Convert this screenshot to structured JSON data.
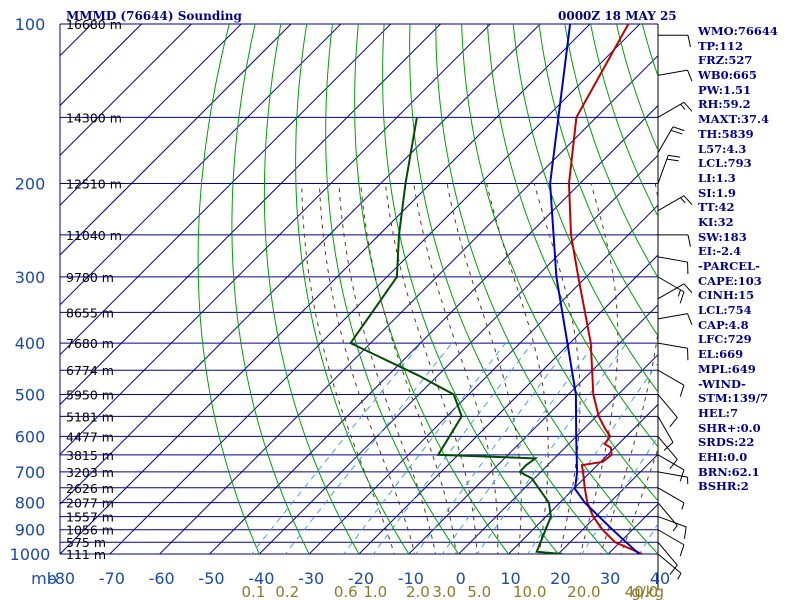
{
  "header": {
    "station": "MMMD (76644) Sounding",
    "time": "0000Z 18 MAY 25"
  },
  "indices": [
    "WMO:76644",
    "TP:112",
    "FRZ:527",
    "WB0:665",
    "PW:1.51",
    "RH:59.2",
    "MAXT:37.4",
    "TH:5839",
    "L57:4.3",
    "LCL:793",
    "LI:1.3",
    "SI:1.9",
    "TT:42",
    "KI:32",
    "SW:183",
    "EI:-2.4",
    "-PARCEL-",
    "CAPE:103",
    "CINH:15",
    "LCL:754",
    "CAP:4.8",
    "LFC:729",
    "EL:669",
    "MPL:649",
    "-WIND-",
    "STM:139/7",
    "HEL:7",
    "SHR+:0.0",
    "SRDS:22",
    "EHI:0.0",
    "BRN:62.1",
    "BSHR:2"
  ],
  "colors": {
    "isobar": "#00008b",
    "isotherm": "#00008b",
    "dry_adiabat": "#00a000",
    "moist_adiabat": "#5a3a1a",
    "mixing_ratio": "#4aa0e0",
    "temperature": "#c00000",
    "dewpoint": "#004d00",
    "parcel": "#0000c0",
    "wind": "#000000",
    "axis_text": "#1a4aa8",
    "mixing_text": "#8b7a2a"
  },
  "chart_data": {
    "type": "skew-t",
    "pressure_unit": "mb",
    "temperature_unit": "C",
    "mixing_ratio_unit": "g/kg",
    "pressure_ticks": [
      100,
      200,
      300,
      400,
      500,
      600,
      700,
      800,
      900,
      1000
    ],
    "temperature_ticks": [
      -80,
      -70,
      -60,
      -50,
      -40,
      -30,
      -20,
      -10,
      0,
      10,
      20,
      30,
      40
    ],
    "plim": [
      100,
      1000
    ],
    "tlim": [
      -80,
      40
    ],
    "height_labels": [
      {
        "p": 100,
        "label": "16680 m"
      },
      {
        "p": 150,
        "label": "14300 m"
      },
      {
        "p": 200,
        "label": "12510 m"
      },
      {
        "p": 250,
        "label": "11040 m"
      },
      {
        "p": 300,
        "label": "9780 m"
      },
      {
        "p": 350,
        "label": "8655 m"
      },
      {
        "p": 400,
        "label": "7680 m"
      },
      {
        "p": 450,
        "label": "6774 m"
      },
      {
        "p": 500,
        "label": "5950 m"
      },
      {
        "p": 550,
        "label": "5181 m"
      },
      {
        "p": 600,
        "label": "4477 m"
      },
      {
        "p": 650,
        "label": "3815 m"
      },
      {
        "p": 700,
        "label": "3203 m"
      },
      {
        "p": 750,
        "label": "2626 m"
      },
      {
        "p": 800,
        "label": "2077 m"
      },
      {
        "p": 850,
        "label": "1557 m"
      },
      {
        "p": 900,
        "label": "1056 m"
      },
      {
        "p": 950,
        "label": "575 m"
      },
      {
        "p": 1000,
        "label": "111 m"
      }
    ],
    "mixing_ratio_labels": [
      {
        "w": 0.1,
        "label": "0.1"
      },
      {
        "w": 0.2,
        "label": "0.2"
      },
      {
        "w": 0.6,
        "label": "0.6"
      },
      {
        "w": 1.0,
        "label": "1.0"
      },
      {
        "w": 2.0,
        "label": "2.0"
      },
      {
        "w": 3.0,
        "label": "3.0"
      },
      {
        "w": 5.0,
        "label": "5.0"
      },
      {
        "w": 10.0,
        "label": "10.0"
      },
      {
        "w": 20.0,
        "label": "20.0"
      },
      {
        "w": 40.0,
        "label": "40.0"
      }
    ],
    "mixing_ratio_unit_label": "g/kg",
    "axis_unit_label": "mb",
    "temperature": [
      {
        "p": 1000,
        "t": 36.8
      },
      {
        "p": 950,
        "t": 29.0
      },
      {
        "p": 900,
        "t": 24.0
      },
      {
        "p": 850,
        "t": 19.5
      },
      {
        "p": 800,
        "t": 15.5
      },
      {
        "p": 750,
        "t": 12.0
      },
      {
        "p": 700,
        "t": 8.5
      },
      {
        "p": 680,
        "t": 6.9
      },
      {
        "p": 670,
        "t": 10.4
      },
      {
        "p": 650,
        "t": 10.8
      },
      {
        "p": 630,
        "t": 9.2
      },
      {
        "p": 620,
        "t": 7.2
      },
      {
        "p": 600,
        "t": 6.8
      },
      {
        "p": 580,
        "t": 4.2
      },
      {
        "p": 550,
        "t": 0.5
      },
      {
        "p": 500,
        "t": -5.0
      },
      {
        "p": 400,
        "t": -15.8
      },
      {
        "p": 300,
        "t": -31.6
      },
      {
        "p": 250,
        "t": -41.5
      },
      {
        "p": 200,
        "t": -52.2
      },
      {
        "p": 150,
        "t": -64.0
      },
      {
        "p": 100,
        "t": -72.3
      }
    ],
    "dewpoint": [
      {
        "p": 1000,
        "t": 20.8
      },
      {
        "p": 990,
        "t": 15.2
      },
      {
        "p": 850,
        "t": 11.0
      },
      {
        "p": 800,
        "t": 7.8
      },
      {
        "p": 720,
        "t": -0.5
      },
      {
        "p": 700,
        "t": -4.2
      },
      {
        "p": 680,
        "t": -4.3
      },
      {
        "p": 660,
        "t": -3.8
      },
      {
        "p": 650,
        "t": -24.0
      },
      {
        "p": 550,
        "t": -27.0
      },
      {
        "p": 500,
        "t": -33.0
      },
      {
        "p": 460,
        "t": -44.0
      },
      {
        "p": 400,
        "t": -64.0
      },
      {
        "p": 300,
        "t": -68.0
      },
      {
        "p": 250,
        "t": -76.0
      },
      {
        "p": 200,
        "t": -85.0
      },
      {
        "p": 150,
        "t": -96.0
      }
    ],
    "parcel": [
      {
        "p": 1000,
        "t": 36.2
      },
      {
        "p": 900,
        "t": 26.0
      },
      {
        "p": 800,
        "t": 15.0
      },
      {
        "p": 754,
        "t": 10.3
      },
      {
        "p": 700,
        "t": 7.3
      },
      {
        "p": 600,
        "t": 0.0
      },
      {
        "p": 500,
        "t": -8.5
      },
      {
        "p": 400,
        "t": -20.5
      },
      {
        "p": 300,
        "t": -36.0
      },
      {
        "p": 200,
        "t": -56.0
      },
      {
        "p": 100,
        "t": -84.0
      }
    ],
    "wind_barbs": [
      {
        "p": 105,
        "dir": 90,
        "spd": 10
      },
      {
        "p": 125,
        "dir": 80,
        "spd": 10
      },
      {
        "p": 150,
        "dir": 60,
        "spd": 15
      },
      {
        "p": 175,
        "dir": 30,
        "spd": 20
      },
      {
        "p": 200,
        "dir": 20,
        "spd": 20
      },
      {
        "p": 225,
        "dir": 60,
        "spd": 15
      },
      {
        "p": 250,
        "dir": 90,
        "spd": 10
      },
      {
        "p": 275,
        "dir": 100,
        "spd": 10
      },
      {
        "p": 300,
        "dir": 120,
        "spd": 15
      },
      {
        "p": 330,
        "dir": 60,
        "spd": 10
      },
      {
        "p": 360,
        "dir": 80,
        "spd": 10
      },
      {
        "p": 400,
        "dir": 100,
        "spd": 10
      },
      {
        "p": 450,
        "dir": 120,
        "spd": 10
      },
      {
        "p": 500,
        "dir": 140,
        "spd": 10
      },
      {
        "p": 550,
        "dir": 150,
        "spd": 10
      },
      {
        "p": 600,
        "dir": 140,
        "spd": 10
      },
      {
        "p": 650,
        "dir": 120,
        "spd": 10
      },
      {
        "p": 700,
        "dir": 100,
        "spd": 5
      },
      {
        "p": 750,
        "dir": 120,
        "spd": 5
      },
      {
        "p": 800,
        "dir": 140,
        "spd": 5
      },
      {
        "p": 850,
        "dir": 110,
        "spd": 10
      },
      {
        "p": 900,
        "dir": 120,
        "spd": 10
      },
      {
        "p": 950,
        "dir": 140,
        "spd": 10
      },
      {
        "p": 1000,
        "dir": 130,
        "spd": 5
      }
    ],
    "grid": true,
    "legend": "none"
  }
}
